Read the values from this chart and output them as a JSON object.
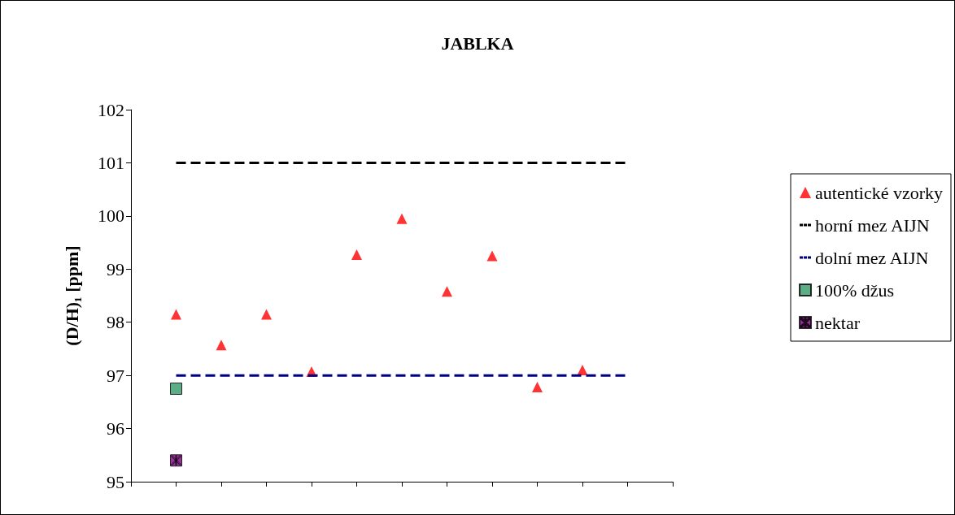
{
  "chart_data": {
    "type": "scatter",
    "title": "JABLKA",
    "ylabel": "(D/H)₁ [ppm]",
    "categories": [
      null,
      null,
      null,
      null,
      null,
      null,
      null,
      null,
      null,
      null,
      null,
      null,
      null
    ],
    "ylim": [
      95,
      102
    ],
    "yticks": [
      95,
      96,
      97,
      98,
      99,
      100,
      101,
      102
    ],
    "tick_labels": "y",
    "grid": false,
    "legend": "right",
    "series": [
      {
        "name": "autentické vzorky",
        "marker": "triangle",
        "color": "#ff0000",
        "values": [
          null,
          98.15,
          97.57,
          98.15,
          97.07,
          99.27,
          99.95,
          98.58,
          99.25,
          96.78,
          97.1,
          null,
          null
        ]
      },
      {
        "name": "horní mez AIJN",
        "type": "line",
        "line_style": "dashed",
        "color": "#000000",
        "values": [
          null,
          101,
          101,
          101,
          101,
          101,
          101,
          101,
          101,
          101,
          101,
          101,
          null
        ]
      },
      {
        "name": "dolní mez AIJN",
        "type": "line",
        "line_style": "dashed",
        "color": "#000080",
        "values": [
          null,
          97,
          97,
          97,
          97,
          97,
          97,
          97,
          97,
          97,
          97,
          97,
          null
        ]
      },
      {
        "name": "100% džus",
        "marker": "square",
        "color": "#339966",
        "values": [
          null,
          96.75,
          null,
          null,
          null,
          null,
          null,
          null,
          null,
          null,
          null,
          null,
          null
        ]
      },
      {
        "name": "nektar",
        "marker": "cross",
        "color": "#800080",
        "values": [
          null,
          95.4,
          null,
          null,
          null,
          null,
          null,
          null,
          null,
          null,
          null,
          null,
          null
        ]
      }
    ]
  }
}
